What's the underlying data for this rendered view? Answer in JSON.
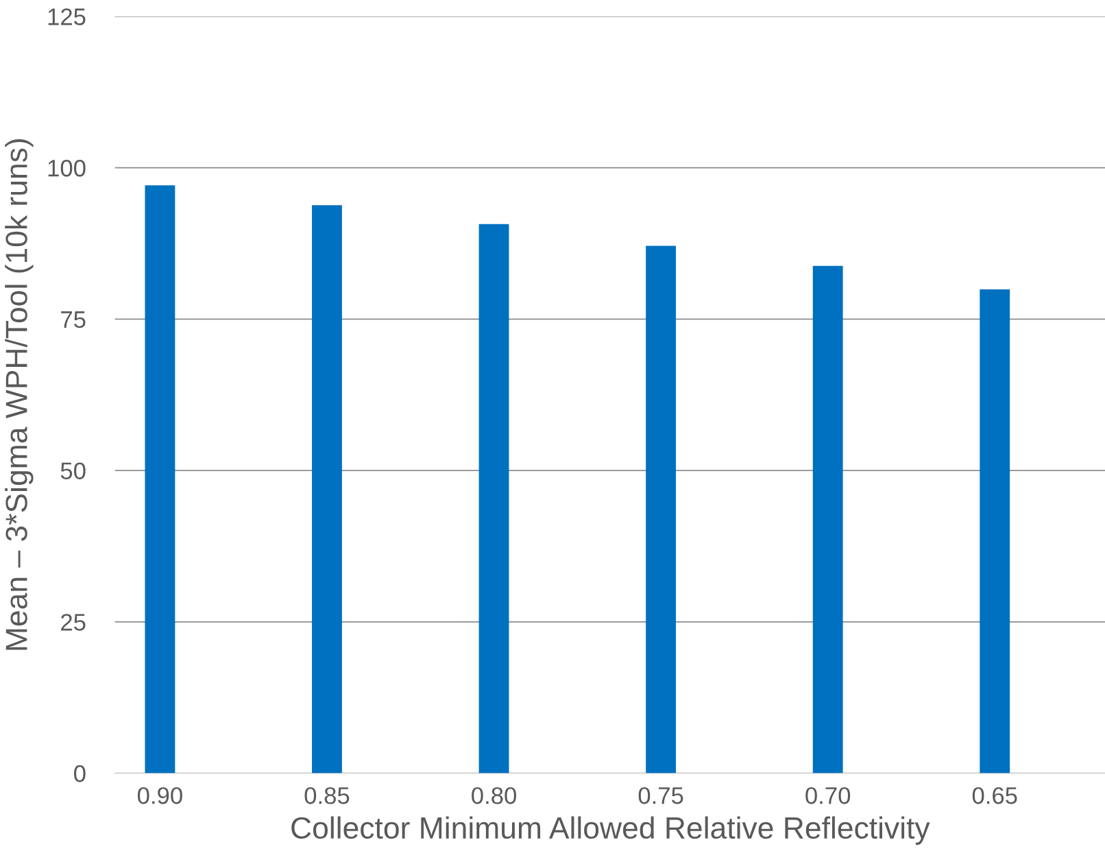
{
  "chart_data": {
    "type": "bar",
    "xlabel": "Collector Minimum Allowed Relative Reflectivity",
    "ylabel": "Mean – 3*Sigma WPH/Tool (10k runs)",
    "categories": [
      "0.90",
      "0.85",
      "0.80",
      "0.75",
      "0.70",
      "0.65"
    ],
    "series": [
      {
        "color": "#0070c0",
        "values": [
          97.1,
          93.8,
          90.7,
          87.1,
          83.8,
          79.9
        ]
      }
    ],
    "ylim": [
      0,
      125
    ],
    "yticks": [
      0,
      25,
      50,
      75,
      100,
      125
    ],
    "grid": "y",
    "legend": false
  }
}
